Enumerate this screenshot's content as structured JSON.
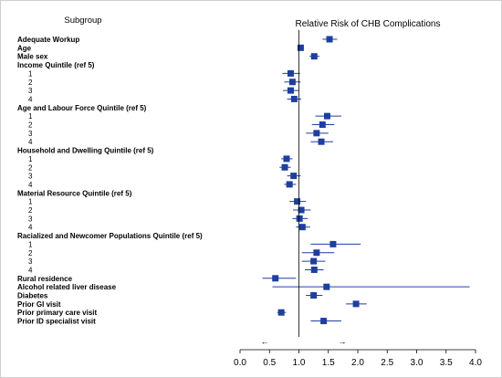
{
  "chart_data": {
    "type": "forest",
    "subgroup_header": "Subgroup",
    "title": "Relative Risk of CHB Complications",
    "xlim": [
      0.0,
      4.0
    ],
    "xticks": [
      "0.0",
      "0.5",
      "1.0",
      "1.5",
      "2.0",
      "2.5",
      "3.0",
      "3.5",
      "4.0"
    ],
    "reference_line": 1.0,
    "arrows": [
      "←",
      "→"
    ],
    "marker_color": "#1f3f9f",
    "rows": [
      {
        "label": "Adequate Workup",
        "bold": true,
        "est": 1.52,
        "lo": 1.4,
        "hi": 1.65
      },
      {
        "label": "Age",
        "bold": true,
        "est": 1.03,
        "lo": 1.0,
        "hi": 1.06
      },
      {
        "label": "Male sex",
        "bold": true,
        "est": 1.26,
        "lo": 1.18,
        "hi": 1.35
      },
      {
        "label": "Income Quintile (ref 5)",
        "bold": true
      },
      {
        "label": "1",
        "indent": true,
        "est": 0.86,
        "lo": 0.72,
        "hi": 1.02
      },
      {
        "label": "2",
        "indent": true,
        "est": 0.89,
        "lo": 0.75,
        "hi": 1.03
      },
      {
        "label": "3",
        "indent": true,
        "est": 0.86,
        "lo": 0.73,
        "hi": 1.0
      },
      {
        "label": "4",
        "indent": true,
        "est": 0.92,
        "lo": 0.8,
        "hi": 1.04
      },
      {
        "label": "Age and Labour Force Quintile (ref 5)",
        "bold": true
      },
      {
        "label": "1",
        "indent": true,
        "est": 1.48,
        "lo": 1.28,
        "hi": 1.72
      },
      {
        "label": "2",
        "indent": true,
        "est": 1.4,
        "lo": 1.22,
        "hi": 1.6
      },
      {
        "label": "3",
        "indent": true,
        "est": 1.3,
        "lo": 1.12,
        "hi": 1.5
      },
      {
        "label": "4",
        "indent": true,
        "est": 1.38,
        "lo": 1.2,
        "hi": 1.58
      },
      {
        "label": "Household and Dwelling Quintile (ref 5)",
        "bold": true
      },
      {
        "label": "1",
        "indent": true,
        "est": 0.79,
        "lo": 0.7,
        "hi": 0.89
      },
      {
        "label": "2",
        "indent": true,
        "est": 0.76,
        "lo": 0.67,
        "hi": 0.86
      },
      {
        "label": "3",
        "indent": true,
        "est": 0.91,
        "lo": 0.8,
        "hi": 1.03
      },
      {
        "label": "4",
        "indent": true,
        "est": 0.84,
        "lo": 0.75,
        "hi": 0.95
      },
      {
        "label": "Material Resource Quintile (ref 5)",
        "bold": true
      },
      {
        "label": "1",
        "indent": true,
        "est": 0.97,
        "lo": 0.84,
        "hi": 1.12
      },
      {
        "label": "2",
        "indent": true,
        "est": 1.04,
        "lo": 0.9,
        "hi": 1.2
      },
      {
        "label": "3",
        "indent": true,
        "est": 1.01,
        "lo": 0.89,
        "hi": 1.15
      },
      {
        "label": "4",
        "indent": true,
        "est": 1.06,
        "lo": 0.95,
        "hi": 1.19
      },
      {
        "label": "Racialized and Newcomer Populations Quintile (ref 5)",
        "bold": true
      },
      {
        "label": "1",
        "indent": true,
        "est": 1.58,
        "lo": 1.2,
        "hi": 2.05
      },
      {
        "label": "2",
        "indent": true,
        "est": 1.3,
        "lo": 1.05,
        "hi": 1.6
      },
      {
        "label": "3",
        "indent": true,
        "est": 1.25,
        "lo": 1.05,
        "hi": 1.45
      },
      {
        "label": "4",
        "indent": true,
        "est": 1.26,
        "lo": 1.1,
        "hi": 1.42
      },
      {
        "label": "Rural residence",
        "bold": true,
        "est": 0.6,
        "lo": 0.38,
        "hi": 0.95
      },
      {
        "label": "Alcohol related liver disease",
        "bold": true,
        "est": 1.47,
        "lo": 0.55,
        "hi": 3.9
      },
      {
        "label": "Diabetes",
        "bold": true,
        "est": 1.25,
        "lo": 1.12,
        "hi": 1.4
      },
      {
        "label": "Prior GI visit",
        "bold": true,
        "est": 1.97,
        "lo": 1.8,
        "hi": 2.15
      },
      {
        "label": "Prior primary care visit",
        "bold": true,
        "est": 0.7,
        "lo": 0.63,
        "hi": 0.78
      },
      {
        "label": "Prior ID specialist visit",
        "bold": true,
        "est": 1.42,
        "lo": 1.2,
        "hi": 1.72
      }
    ]
  }
}
